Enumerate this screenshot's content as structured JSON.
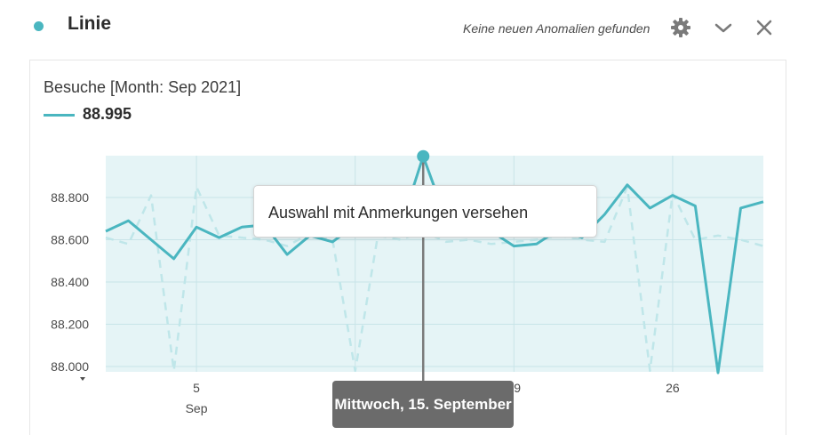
{
  "panel": {
    "title": "Linie",
    "anomaly_status": "Keine neuen Anomalien gefunden",
    "icons": {
      "settings": "gear-icon",
      "collapse": "chevron-down-icon",
      "close": "close-icon"
    },
    "accent_color": "#4ab6c0"
  },
  "metric": {
    "label": "Besuche [Month: Sep 2021]",
    "value": "88.995"
  },
  "tooltip": {
    "action": "Auswahl mit Anmerkungen versehen",
    "date": "Mittwoch, 15. September"
  },
  "chart_data": {
    "type": "line",
    "title": "",
    "xlabel": "",
    "ylabel": "",
    "x": [
      1,
      2,
      3,
      4,
      5,
      6,
      7,
      8,
      9,
      10,
      11,
      12,
      13,
      14,
      15,
      16,
      17,
      18,
      19,
      20,
      21,
      22,
      23,
      24,
      25,
      26,
      27,
      28,
      29,
      30
    ],
    "xlim": [
      1,
      30
    ],
    "ylim": [
      88000,
      89000
    ],
    "yticks": [
      88000,
      88200,
      88400,
      88600,
      88800
    ],
    "ytick_labels": [
      "88.000",
      "88.200",
      "88.400",
      "88.600",
      "88.800"
    ],
    "xticks": [
      5,
      12,
      19,
      26
    ],
    "xtick_labels": [
      "5",
      "12",
      "19",
      "26"
    ],
    "xtick_sublabels": [
      "Sep",
      "",
      "",
      ""
    ],
    "grid": true,
    "series": [
      {
        "name": "88.995",
        "style": "solid",
        "color": "#4ab6c0",
        "values": [
          88640,
          88690,
          88600,
          88510,
          88660,
          88610,
          88660,
          88670,
          88530,
          88620,
          88590,
          88670,
          88640,
          88660,
          88995,
          88700,
          88730,
          88640,
          88570,
          88580,
          88650,
          88610,
          88720,
          88860,
          88750,
          88810,
          88760,
          87970,
          88750,
          88780
        ]
      },
      {
        "name": "",
        "style": "dashed",
        "color": "#bfe6e9",
        "values": [
          88610,
          88580,
          88810,
          87980,
          88850,
          88620,
          88610,
          88600,
          88570,
          88630,
          88600,
          87980,
          88620,
          88600,
          88640,
          88590,
          88600,
          88580,
          88590,
          88600,
          88620,
          88600,
          88590,
          88850,
          87980,
          88820,
          88600,
          88620,
          88600,
          88570
        ]
      }
    ],
    "selected_x": 15
  }
}
